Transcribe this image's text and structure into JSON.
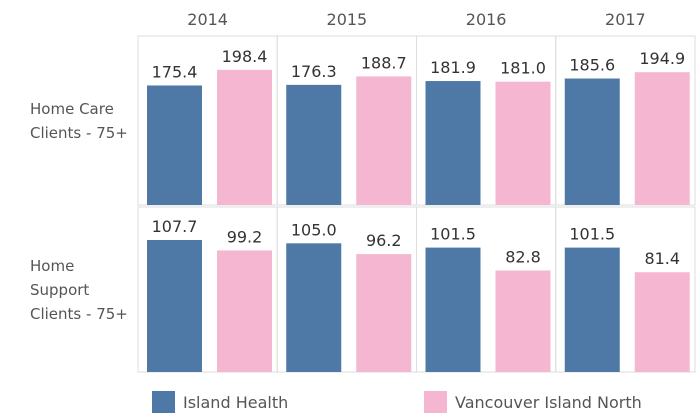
{
  "chart_data": {
    "type": "bar",
    "categories": [
      "2014",
      "2015",
      "2016",
      "2017"
    ],
    "rows": [
      "Home Care Clients - 75+",
      "Home Support Clients - 75+"
    ],
    "series": [
      {
        "name": "Island Health",
        "color": "#4e79a7",
        "values": [
          [
            175.4,
            176.3,
            181.9,
            185.6
          ],
          [
            107.7,
            105.0,
            101.5,
            101.5
          ]
        ],
        "value_labels": [
          [
            "175.4",
            "176.3",
            "181.9",
            "185.6"
          ],
          [
            "107.7",
            "105.0",
            "101.5",
            "101.5"
          ]
        ]
      },
      {
        "name": "Vancouver Island North",
        "color": "#f5b6d2",
        "values": [
          [
            198.4,
            188.7,
            181.0,
            194.9
          ],
          [
            99.2,
            96.2,
            82.8,
            81.4
          ]
        ],
        "value_labels": [
          [
            "198.4",
            "188.7",
            "181.0",
            "194.9"
          ],
          [
            "99.2",
            "96.2",
            "82.8",
            "81.4"
          ]
        ]
      }
    ]
  }
}
